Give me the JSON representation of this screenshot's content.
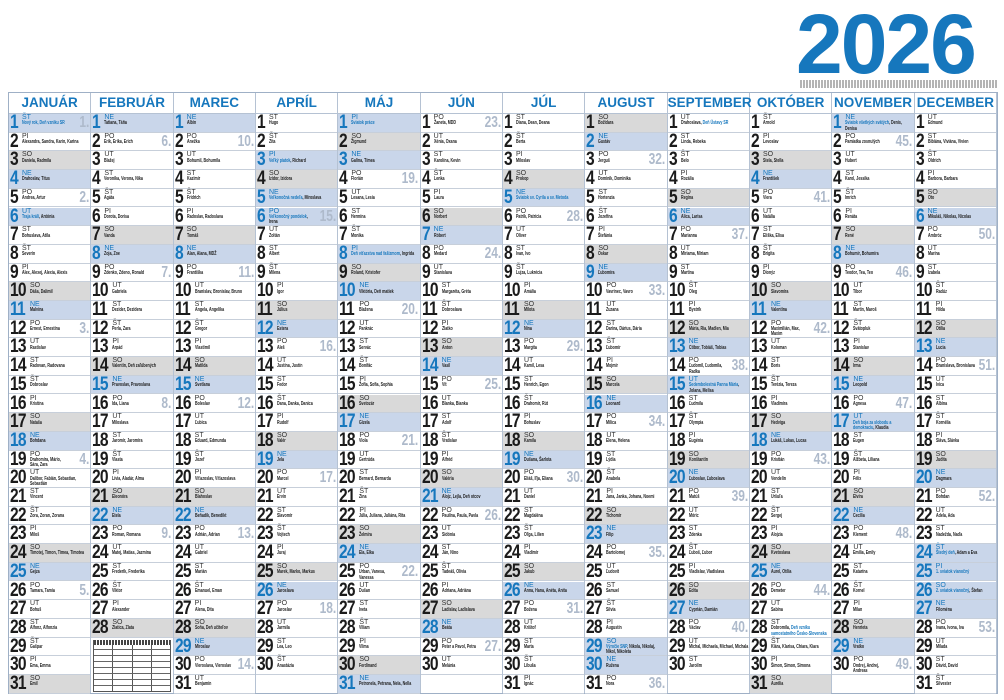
{
  "year": "2026",
  "colors": {
    "accent": "#1677bd",
    "sunday_bg": "#c9d6ea",
    "saturday_bg": "#d9d9d9",
    "week_number": "#aebacb"
  },
  "weekday_labels": [
    "PO",
    "UT",
    "ST",
    "ŠT",
    "PI",
    "SO",
    "NE"
  ],
  "week_numbers": [
    "1.",
    "2.",
    "3.",
    "4.",
    "5.",
    "6.",
    "7.",
    "8.",
    "9.",
    "10.",
    "11.",
    "12.",
    "13.",
    "14.",
    "15.",
    "16.",
    "17.",
    "18.",
    "19.",
    "20.",
    "21.",
    "22.",
    "23.",
    "24.",
    "25.",
    "26.",
    "27.",
    "28.",
    "29.",
    "30.",
    "31.",
    "32.",
    "33.",
    "34.",
    "35.",
    "36.",
    "37.",
    "38.",
    "39.",
    "40.",
    "41.",
    "42.",
    "43.",
    "44.",
    "45.",
    "46.",
    "47.",
    "48.",
    "49.",
    "50.",
    "51.",
    "52.",
    "53."
  ],
  "months": [
    {
      "name": "JANUÁR",
      "holidays": [
        {
          "day": 1,
          "text": "Nový rok, Deň vzniku SR",
          "day_off": true
        },
        {
          "day": 6,
          "text": "Traja králi",
          "day_off": true
        }
      ],
      "names": [
        "",
        "Alexandra, Sandra, Karin, Karina",
        "Daniela, Radmila",
        "Drahoslav, Titus",
        "Andrea, Artur",
        "Antónia",
        "Bohuslava, Atila",
        "Severín",
        "Alex, Alexej, Alexia, Alexis",
        "Dáša, Dalimil",
        "Malvína",
        "Ernest, Ernestína",
        "Rastislav",
        "Radovan, Radovana",
        "Dobroslav",
        "Kristína",
        "Nataša",
        "Bohdana",
        "Drahomíra, Mário, Sára, Zara",
        "Dalibor, Fabián, Sebastian, Sebastián",
        "Vincent",
        "Zora, Zoran, Zorana",
        "Miloš",
        "Timotej, Timon, Tímea, Timotea",
        "Gejza",
        "Tamara, Tamia",
        "Bohuš",
        "Alfonz, Alfonzia",
        "Gašpar",
        "Ema, Emma",
        "Emil"
      ]
    },
    {
      "name": "FEBRUÁR",
      "holidays": [],
      "names": [
        "Tatiana, Táňa",
        "Erik, Erika, Erich",
        "Blažej",
        "Veronika, Verona, Nika",
        "Agáta",
        "Dorota, Dorisa",
        "Vanda",
        "Zoja, Zoe",
        "Zdenko, Zdeno, Ronald",
        "Gabriela",
        "Dezider, Dezidera",
        "Perla, Zara",
        "Arpád",
        "Valentín, Deň zaľúbených",
        "Pravoslav, Pravoslava",
        "Ida, Liana",
        "Miloslava",
        "Jaromír, Jaromíra",
        "Vlasta",
        "Lívia, Aladár, Alma",
        "Eleonóra",
        "Etela",
        "Roman, Romana",
        "Matej, Matias, Jazmína",
        "Frederik, Frederika",
        "Viktor",
        "Alexander",
        "Zlatica, Zlata"
      ]
    },
    {
      "name": "MAREC",
      "holidays": [],
      "names": [
        "Albín",
        "Anežka",
        "Bohumil, Bohumila",
        "Kazimír",
        "Fridrich",
        "Radoslav, Radoslava",
        "Tomáš",
        "Alan, Alana, MDŽ",
        "Františka",
        "Branislav, Bronislav, Bruno",
        "Angela, Angelika",
        "Gregor",
        "Vlastimil",
        "Matilda",
        "Svetlana",
        "Boleslav",
        "Ľubica",
        "Eduard, Edmunda",
        "Jozef",
        "Víťazoslav, Víťazoslava",
        "Blahoslav",
        "Beňadik, Benedikt",
        "Adrián, Adrian",
        "Gabriel",
        "Marián",
        "Emanuel, Eman",
        "Alena, Dita",
        "Soňa, Deň učiteľov",
        "Miroslav",
        "Vieroslava, Vieroslav",
        "Benjamín"
      ]
    },
    {
      "name": "APRÍL",
      "holidays": [
        {
          "day": 3,
          "text": "Veľký piatok",
          "day_off": true
        },
        {
          "day": 5,
          "text": "Veľkonočná nedeľa",
          "day_off": true
        },
        {
          "day": 6,
          "text": "Veľkonočný pondelok",
          "day_off": true
        }
      ],
      "names": [
        "Hugo",
        "Zita",
        "Richard",
        "Izidor, Izidora",
        "Miroslava",
        "Irena",
        "Zoltán",
        "Albert",
        "Milena",
        "Igor",
        "Július",
        "Estera",
        "Aleš",
        "Justína, Justín",
        "Fedor",
        "Dana, Danka, Danica",
        "Rudolf",
        "Valér",
        "Jela",
        "Marcel",
        "Ervín",
        "Slavomír",
        "Vojtech",
        "Juraj",
        "Marek, Marko, Markus",
        "Jaroslava",
        "Jaroslav",
        "Jarmila",
        "Lea, Leo",
        "Anastázia"
      ]
    },
    {
      "name": "MÁJ",
      "holidays": [
        {
          "day": 1,
          "text": "Sviatok práce",
          "day_off": true
        },
        {
          "day": 8,
          "text": "Deň víťazstva nad fašizmom",
          "day_off": true
        }
      ],
      "names": [
        "",
        "Žigmund",
        "Galina, Tímea",
        "Florián",
        "Lesana, Lesia",
        "Hermína",
        "Monika",
        "Ingrida",
        "Roland, Kristofer",
        "Viktória, Deň matiek",
        "Blažena",
        "Pankrác",
        "Servác",
        "Bonifác",
        "Žofia, Sofia, Sophia",
        "Svetozár",
        "Gizela",
        "Viola",
        "Gertrúda",
        "Bernard, Bernarda",
        "Zina",
        "Júlia, Juliana, Juliána, Rita",
        "Želmíra",
        "Ela, Elka",
        "Urban, Vanesa, Vanessa",
        "Dušan",
        "Iveta",
        "Viliam",
        "Vilma",
        "Ferdinand",
        "Petronela, Petrana, Nela, Nella"
      ]
    },
    {
      "name": "JÚN",
      "holidays": [],
      "names": [
        "Žaneta, MDD",
        "Xénia, Oxana",
        "Karolína, Kevin",
        "Lenka",
        "Laura",
        "Norbert",
        "Róbert",
        "Medard",
        "Stanislava",
        "Margaréta, Gréta",
        "Dobroslava",
        "Zlatko",
        "Anton",
        "Vasil",
        "Vít",
        "Blanka, Bianka",
        "Adolf",
        "Vratislav",
        "Alfréd",
        "Valéria",
        "Alojz, Lejla, Deň otcov",
        "Paulína, Paula, Pavla",
        "Sidónia",
        "Ján, Nino",
        "Tadeáš, Olívia",
        "Adriana, Adriána",
        "Ladislav, Ladislava",
        "Beáta",
        "Peter a Pavol, Petra",
        "Melánia"
      ]
    },
    {
      "name": "JÚL",
      "holidays": [
        {
          "day": 5,
          "text": "Sviatok sv. Cyrila a sv. Metoda",
          "day_off": true
        }
      ],
      "names": [
        "Diana, Dean, Deana",
        "Berta",
        "Miloslav",
        "Prokop",
        "",
        "Patrik, Patrícia",
        "Oliver",
        "Ivan, Ivo",
        "Lujza, Lukrécia",
        "Amália",
        "Milota",
        "Nina",
        "Margita",
        "Kamil, Lesa",
        "Henrich, Egon",
        "Drahomír, Rút",
        "Bohuslav",
        "Kamila",
        "Dušana, Šarlota",
        "Eliáš, Iľja, Eliana",
        "Daniel",
        "Magdaléna",
        "Oľga, Lilien",
        "Vladimír",
        "Jakub",
        "Anna, Hana, Anéta, Anita",
        "Božena",
        "Krištof",
        "Marta",
        "Libuša",
        "Ignác"
      ]
    },
    {
      "name": "AUGUST",
      "holidays": [
        {
          "day": 29,
          "text": "Výročie SNP",
          "day_off": true
        }
      ],
      "names": [
        "Božidara",
        "Gustáv",
        "Jerguš",
        "Dominik, Dominika",
        "Hortenzia",
        "Jozefína",
        "Štefánia",
        "Oskar",
        "Ľubomíra",
        "Vavrinec, Vavro",
        "Zuzana",
        "Darina, Dárius, Dária",
        "Ľubomír",
        "Mojmír",
        "Marcela",
        "Leonard",
        "Milica",
        "Elena, Helena",
        "Lýdia",
        "Anabela",
        "Jana, Janka, Johana, Noemi",
        "Tichomír",
        "Filip",
        "Bartolomej",
        "Ľudovít",
        "Samuel",
        "Silvia",
        "Augustín",
        "Nikola, Nikolaj, Nikol, Nikoleta",
        "Ružena",
        "Nora"
      ]
    },
    {
      "name": "SEPTEMBER",
      "holidays": [
        {
          "day": 1,
          "text": "Deň Ústavy SR",
          "day_off": false,
          "after": true
        },
        {
          "day": 15,
          "text": "Sedembolestná Panna Mária",
          "day_off": true
        }
      ],
      "names": [
        "Drahoslava",
        "Linda, Rebeka",
        "Belo",
        "Rozália",
        "Regína",
        "Alica, Larisa",
        "Marianna",
        "Miriama, Miriam",
        "Martina",
        "Oleg",
        "Bystrík",
        "Mária, Ria, Madlen, Mia",
        "Ctibor, Tobiáš, Tobias",
        "Ľudomil, Ľudomila, Radka",
        "Jolana, Melisa",
        "Ľudmila",
        "Olympia",
        "Eugénia",
        "Konštantín",
        "Ľuboslav, Ľuboslava",
        "Matúš",
        "Móric",
        "Zdenka",
        "Ľuboš, Ľubor",
        "Vladislav, Vladislava",
        "Edita",
        "Cyprián, Damián",
        "Václav",
        "Michal, Michaela, Michael, Michala",
        "Jarolím"
      ]
    },
    {
      "name": "OKTÓBER",
      "holidays": [
        {
          "day": 28,
          "text": "Deň vzniku samostatného Česko-Slovenska",
          "day_off": false,
          "after": true
        }
      ],
      "names": [
        "Arnold",
        "Levoslav",
        "Stela, Stella",
        "František",
        "Viera",
        "Natália",
        "Eliška, Elisa",
        "Brigita",
        "Dionýz",
        "Slavomíra",
        "Valentína",
        "Maximilián, Max, Maxim",
        "Koloman",
        "Boris",
        "Terézia, Tereza",
        "Vladimíra",
        "Hedviga",
        "Lukáš, Lukas, Lucas",
        "Kristián",
        "Vendelín",
        "Uršuľa",
        "Sergej",
        "Alojzia",
        "Kvetoslava",
        "Aurel, Otília",
        "Demeter",
        "Sabína",
        "Dobromila",
        "Klára, Klarisa, Chiara, Kiara",
        "Šimon, Simon, Simona",
        "Aurélia"
      ]
    },
    {
      "name": "NOVEMBER",
      "holidays": [
        {
          "day": 1,
          "text": "Sviatok všetkých svätých",
          "day_off": true
        },
        {
          "day": 17,
          "text": "Deň boja za slobodu a demokraciu",
          "day_off": true
        }
      ],
      "names": [
        "Denis, Denisa",
        "Pamiatka zosnulých",
        "Hubert",
        "Karol, Jessika",
        "Imrich",
        "Renáta",
        "René",
        "Bohumír, Bohumíra",
        "Teodor, Tea, Teo",
        "Tibor",
        "Martin, Maroš",
        "Svätopluk",
        "Stanislav",
        "Irma",
        "Leopold",
        "Agnesa",
        "Klaudia",
        "Eugen",
        "Alžbeta, Liliana",
        "Félix",
        "Elvíra",
        "Cecília",
        "Klement",
        "Emília, Emily",
        "Katarína",
        "Kornel",
        "Milan",
        "Henrieta",
        "Vratko",
        "Ondrej, Andrej, Andreas"
      ]
    },
    {
      "name": "DECEMBER",
      "holidays": [
        {
          "day": 24,
          "text": "Štedrý deň",
          "day_off": true
        },
        {
          "day": 25,
          "text": "1. sviatok vianočný",
          "day_off": true
        },
        {
          "day": 26,
          "text": "2. sviatok vianočný",
          "day_off": true
        }
      ],
      "names": [
        "Edmund",
        "Bibiána, Viviána, Vivien",
        "Oldrich",
        "Barbora, Barbara",
        "Oto",
        "Mikuláš, Nikolas, Nicolas",
        "Ambróz",
        "Marína",
        "Izabela",
        "Radúz",
        "Hilda",
        "Otília",
        "Lucia",
        "Branislava, Bronislava",
        "Ivica",
        "Albína",
        "Kornélia",
        "Sláva, Slávka",
        "Judita",
        "Dagmara",
        "Bohdan",
        "Adela, Ada",
        "Nadežda, Naďa",
        "Adam a Eva",
        "",
        "Štefan",
        "Filoména",
        "Ivana, Ivona, Iva",
        "Milada",
        "Dávid, David",
        "Silvester"
      ]
    }
  ]
}
